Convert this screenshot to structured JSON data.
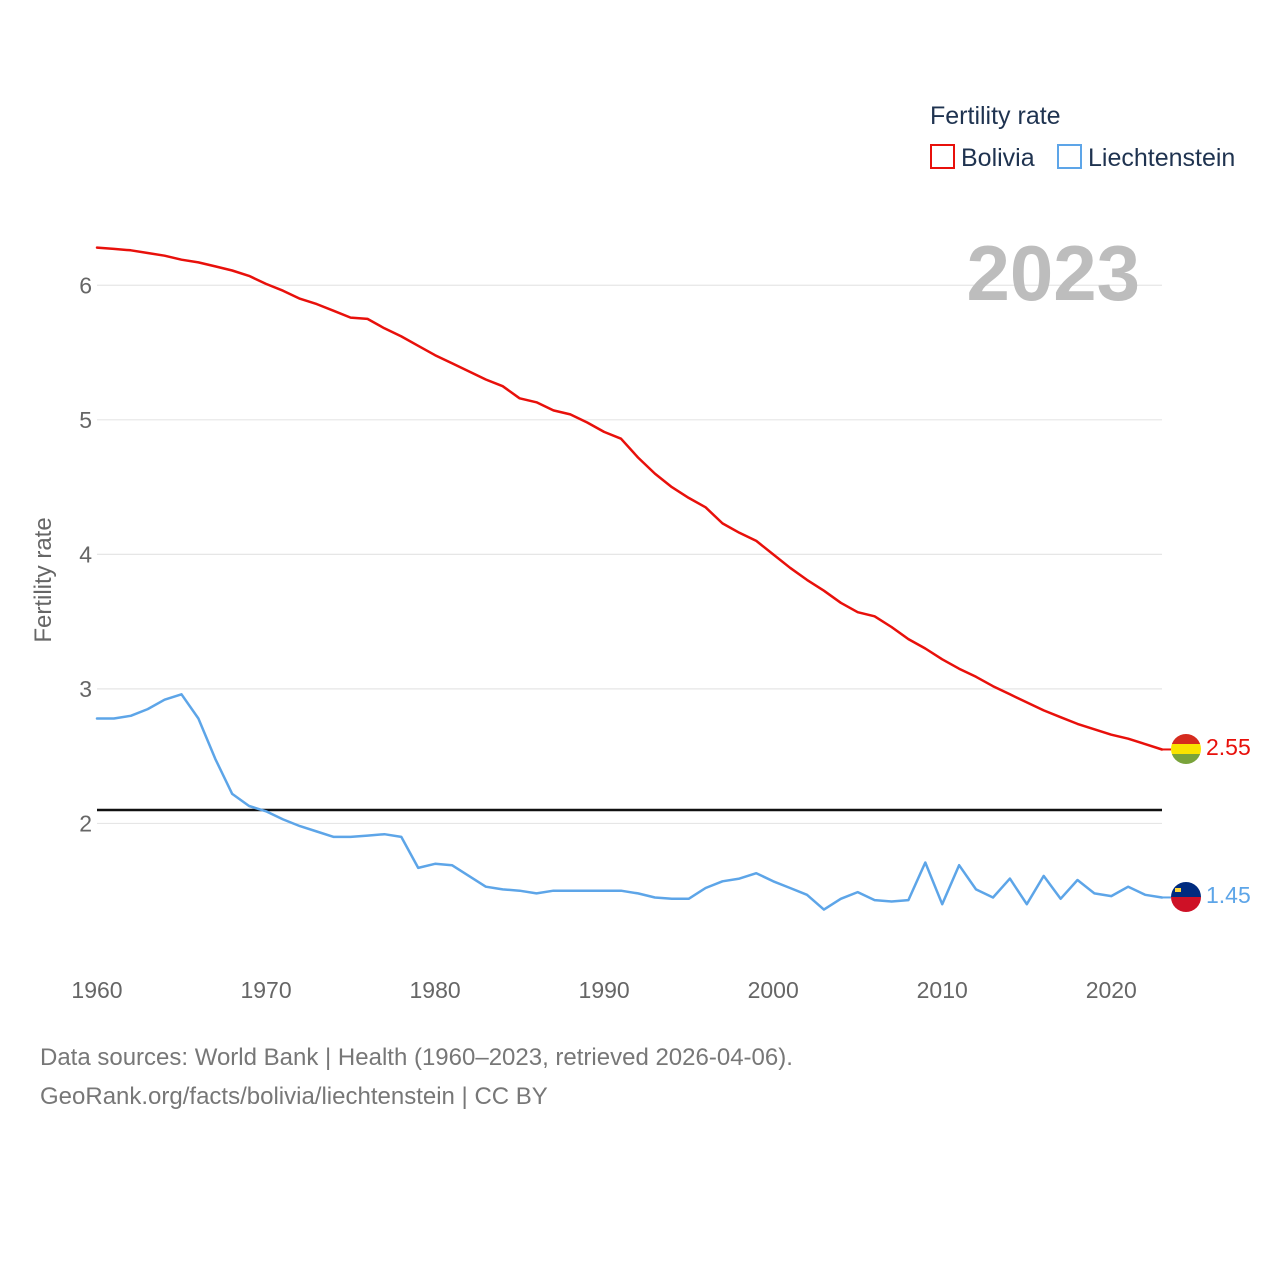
{
  "chart_data": {
    "type": "line",
    "title": "",
    "xlabel": "",
    "ylabel": "Fertility rate",
    "xlim": [
      1960,
      2023
    ],
    "ylim": [
      1.0,
      6.5
    ],
    "yticks": [
      2,
      3,
      4,
      5,
      6
    ],
    "xticks": [
      1960,
      1970,
      1980,
      1990,
      2000,
      2010,
      2020
    ],
    "year_label": "2023",
    "reference_line": 2.1,
    "legend": {
      "title": "Fertility rate",
      "position": "top-right"
    },
    "x": [
      1960,
      1961,
      1962,
      1963,
      1964,
      1965,
      1966,
      1967,
      1968,
      1969,
      1970,
      1971,
      1972,
      1973,
      1974,
      1975,
      1976,
      1977,
      1978,
      1979,
      1980,
      1981,
      1982,
      1983,
      1984,
      1985,
      1986,
      1987,
      1988,
      1989,
      1990,
      1991,
      1992,
      1993,
      1994,
      1995,
      1996,
      1997,
      1998,
      1999,
      2000,
      2001,
      2002,
      2003,
      2004,
      2005,
      2006,
      2007,
      2008,
      2009,
      2010,
      2011,
      2012,
      2013,
      2014,
      2015,
      2016,
      2017,
      2018,
      2019,
      2020,
      2021,
      2022,
      2023
    ],
    "series": [
      {
        "name": "Bolivia",
        "color": "#e8100b",
        "end_label": "2.55",
        "values": [
          6.28,
          6.27,
          6.26,
          6.24,
          6.22,
          6.19,
          6.17,
          6.14,
          6.11,
          6.07,
          6.01,
          5.96,
          5.9,
          5.86,
          5.81,
          5.76,
          5.75,
          5.68,
          5.62,
          5.55,
          5.48,
          5.42,
          5.36,
          5.3,
          5.25,
          5.16,
          5.13,
          5.07,
          5.04,
          4.98,
          4.91,
          4.86,
          4.72,
          4.6,
          4.5,
          4.42,
          4.35,
          4.23,
          4.16,
          4.1,
          4.0,
          3.9,
          3.81,
          3.73,
          3.64,
          3.57,
          3.54,
          3.46,
          3.37,
          3.3,
          3.22,
          3.15,
          3.09,
          3.02,
          2.96,
          2.9,
          2.84,
          2.79,
          2.74,
          2.7,
          2.66,
          2.63,
          2.59,
          2.55
        ]
      },
      {
        "name": "Liechtenstein",
        "color": "#5da5e8",
        "end_label": "1.45",
        "values": [
          2.78,
          2.78,
          2.8,
          2.85,
          2.92,
          2.96,
          2.78,
          2.48,
          2.22,
          2.13,
          2.09,
          2.03,
          1.98,
          1.94,
          1.9,
          1.9,
          1.91,
          1.92,
          1.9,
          1.67,
          1.7,
          1.69,
          1.61,
          1.53,
          1.51,
          1.5,
          1.48,
          1.5,
          1.5,
          1.5,
          1.5,
          1.5,
          1.48,
          1.45,
          1.44,
          1.44,
          1.52,
          1.57,
          1.59,
          1.63,
          1.57,
          1.52,
          1.47,
          1.36,
          1.44,
          1.49,
          1.43,
          1.42,
          1.43,
          1.71,
          1.4,
          1.69,
          1.51,
          1.45,
          1.59,
          1.4,
          1.61,
          1.44,
          1.58,
          1.48,
          1.46,
          1.53,
          1.47,
          1.45
        ]
      }
    ]
  },
  "source": {
    "line1": "Data sources: World Bank | Health (1960–2023, retrieved 2026-04-06).",
    "line2": "GeoRank.org/facts/bolivia/liechtenstein | CC BY"
  }
}
